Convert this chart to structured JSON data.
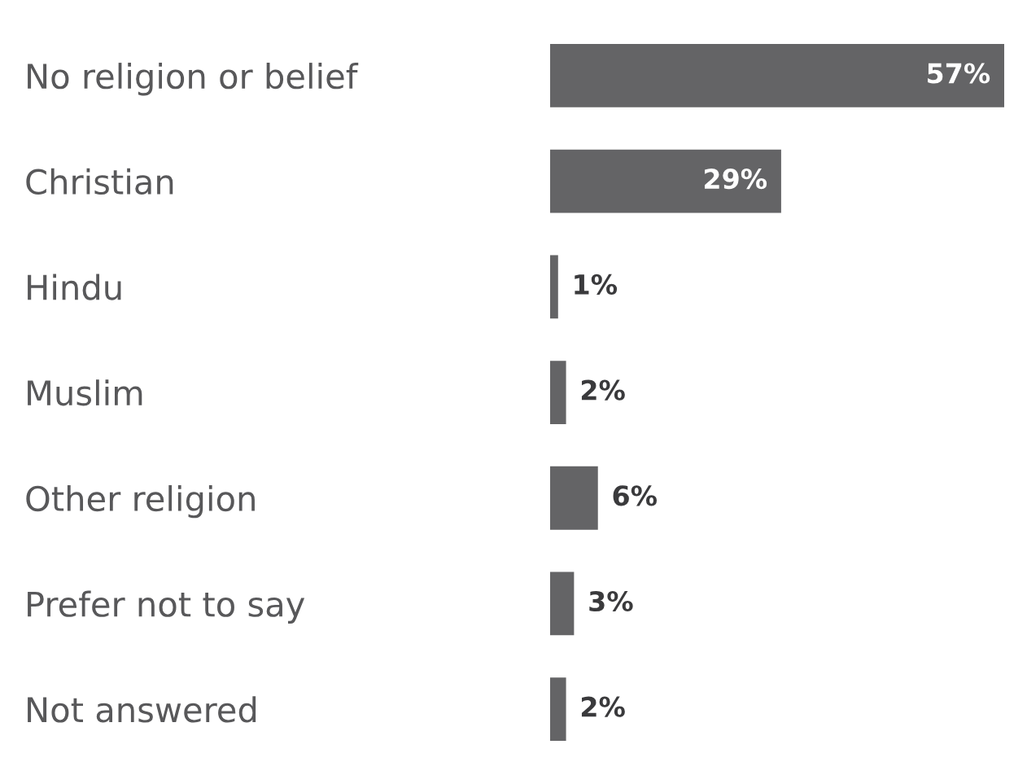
{
  "chart_data": {
    "type": "bar",
    "orientation": "horizontal",
    "categories": [
      "No religion or belief",
      "Christian",
      "Hindu",
      "Muslim",
      "Other religion",
      "Prefer not to say",
      "Not answered"
    ],
    "values": [
      57,
      29,
      1,
      2,
      6,
      3,
      2
    ],
    "color": "#646466",
    "data_labels": true,
    "value_labels": [
      "57%",
      "29%",
      "1%",
      "2%",
      "6%",
      "3%",
      "2%"
    ],
    "grid": false,
    "legend": false
  }
}
